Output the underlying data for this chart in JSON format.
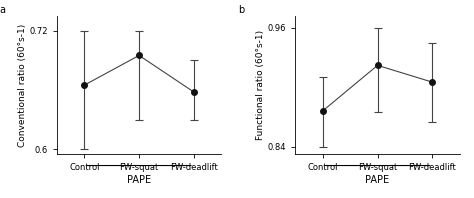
{
  "panel_a": {
    "label": "a",
    "ylabel": "Conventional ratio (60°s-1)",
    "xlabel": "PAPE",
    "categories": [
      "Control",
      "FW-squat",
      "FW-deadlift"
    ],
    "values": [
      0.665,
      0.695,
      0.658
    ],
    "yerr_lower": [
      0.065,
      0.065,
      0.028
    ],
    "yerr_upper": [
      0.055,
      0.025,
      0.032
    ],
    "ylim": [
      0.595,
      0.735
    ],
    "yticks": [
      0.6,
      0.72
    ]
  },
  "panel_b": {
    "label": "b",
    "ylabel": "Functional ratio (60°s-1)",
    "xlabel": "PAPE",
    "categories": [
      "Control",
      "FW-squat",
      "FW-deadlift"
    ],
    "values": [
      0.876,
      0.922,
      0.905
    ],
    "yerr_lower": [
      0.036,
      0.047,
      0.04
    ],
    "yerr_upper": [
      0.034,
      0.038,
      0.04
    ],
    "ylim": [
      0.832,
      0.972
    ],
    "yticks": [
      0.84,
      0.96
    ]
  },
  "line_color": "#444444",
  "marker_color": "#111111",
  "marker_size": 4,
  "capsize": 3,
  "font_size": 6.5,
  "label_font_size": 7,
  "tick_font_size": 6,
  "background_color": "#ffffff"
}
